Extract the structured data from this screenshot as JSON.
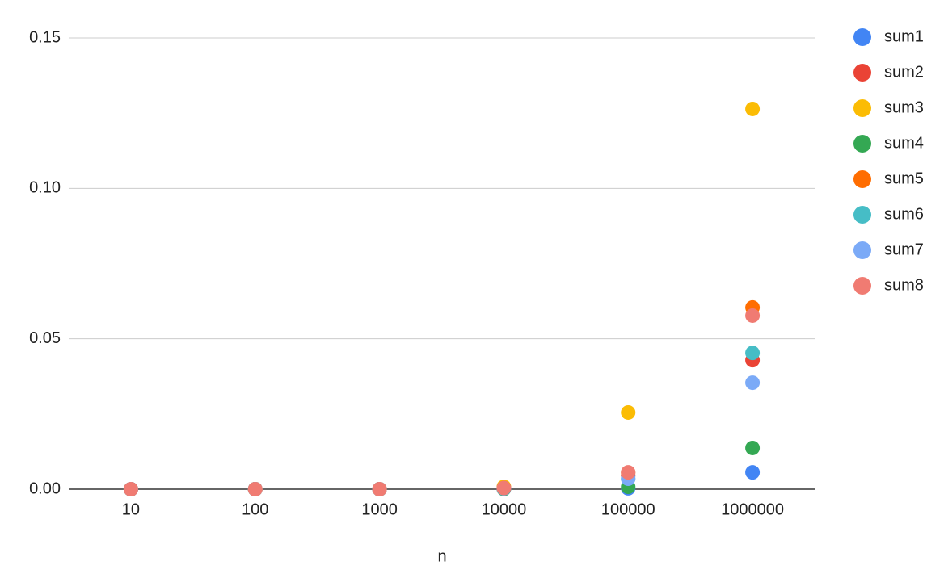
{
  "chart_data": {
    "type": "scatter",
    "x_label": "n",
    "categories": [
      "10",
      "100",
      "1000",
      "10000",
      "100000",
      "1000000"
    ],
    "series": [
      {
        "name": "sum1",
        "color": "#4285f4",
        "values": [
          0,
          0,
          0,
          0.0001,
          0.0003,
          0.0056
        ]
      },
      {
        "name": "sum2",
        "color": "#ea4335",
        "values": [
          0,
          0,
          0,
          0.0002,
          0.0045,
          0.0429
        ]
      },
      {
        "name": "sum3",
        "color": "#fbbc04",
        "values": [
          0,
          0,
          0,
          0.0008,
          0.0255,
          0.1264
        ]
      },
      {
        "name": "sum4",
        "color": "#34a853",
        "values": [
          0,
          0,
          0,
          0.0001,
          0.0008,
          0.0137
        ]
      },
      {
        "name": "sum5",
        "color": "#ff6d01",
        "values": [
          0,
          0,
          0,
          0.0004,
          0.0055,
          0.0604
        ]
      },
      {
        "name": "sum6",
        "color": "#46bdc6",
        "values": [
          0,
          0,
          0,
          0.0003,
          0.0035,
          0.0453
        ]
      },
      {
        "name": "sum7",
        "color": "#7baaf7",
        "values": [
          0,
          0,
          0,
          0.0003,
          0.0035,
          0.0354
        ]
      },
      {
        "name": "sum8",
        "color": "#f07b72",
        "values": [
          0,
          0,
          0,
          0.0004,
          0.0056,
          0.0577
        ]
      }
    ],
    "ylim": [
      0,
      0.15
    ],
    "yticks": [
      {
        "value": 0,
        "label": "0.00"
      },
      0.05,
      {
        "value": 0.1,
        "label": "0.10"
      },
      0.15
    ],
    "grid": true,
    "legend": "right"
  }
}
